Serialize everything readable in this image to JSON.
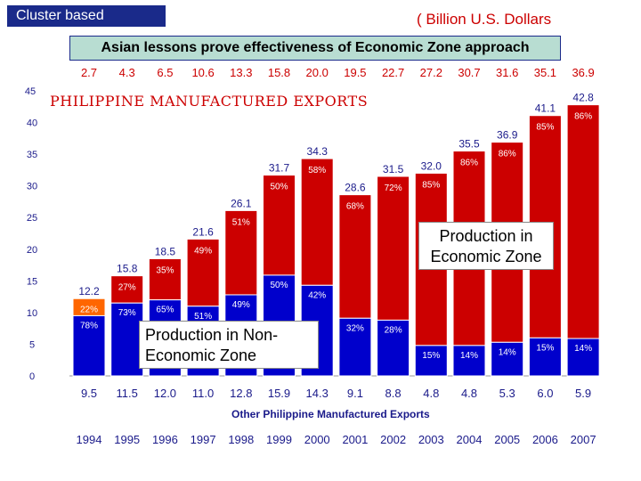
{
  "header": {
    "tag": "Cluster based",
    "unit": "( Billion U.S. Dollars",
    "headline": "Asian lessons prove effectiveness of Economic Zone approach"
  },
  "chart_data": {
    "type": "bar",
    "title": "PHILIPPINE MANUFACTURED EXPORTS",
    "categories": [
      "1994",
      "1995",
      "1996",
      "1997",
      "1998",
      "1999",
      "2000",
      "2001",
      "2002",
      "2003",
      "2004",
      "2005",
      "2006",
      "2007"
    ],
    "totals": [
      15.8,
      18.5,
      21.6,
      26.1,
      31.7,
      34.3,
      28.6,
      31.5,
      32.0,
      35.5,
      36.9,
      41.1,
      42.8
    ],
    "total_labels": [
      "12.2",
      "15.8",
      "18.5",
      "21.6",
      "26.1",
      "31.7",
      "34.3",
      "28.6",
      "31.5",
      "32.0",
      "35.5",
      "36.9",
      "41.1",
      "42.8"
    ],
    "totals_all": [
      12.2,
      15.8,
      18.5,
      21.6,
      26.1,
      31.7,
      34.3,
      28.6,
      31.5,
      32.0,
      35.5,
      36.9,
      41.1,
      42.8
    ],
    "series": [
      {
        "name": "Production in Economic Zone",
        "color": "#cc0000",
        "values": [
          2.7,
          4.3,
          6.5,
          10.6,
          13.3,
          15.8,
          20.0,
          19.5,
          22.7,
          27.2,
          30.7,
          31.6,
          35.1,
          36.9
        ],
        "labels": [
          "2.7",
          "4.3",
          "6.5",
          "10.6",
          "13.3",
          "15.8",
          "20.0",
          "19.5",
          "22.7",
          "27.2",
          "30.7",
          "31.6",
          "35.1",
          "36.9"
        ],
        "pct": [
          "22%",
          "27%",
          "35%",
          "49%",
          "51%",
          "50%",
          "58%",
          "68%",
          "72%",
          "85%",
          "86%",
          "86%",
          "85%",
          "86%"
        ]
      },
      {
        "name": "Production in Non-Economic Zone",
        "color": "#0000cc",
        "values": [
          9.5,
          11.5,
          12.0,
          11.0,
          12.8,
          15.9,
          14.3,
          9.1,
          8.8,
          4.8,
          4.8,
          5.3,
          6.0,
          5.9
        ],
        "labels": [
          "9.5",
          "11.5",
          "12.0",
          "11.0",
          "12.8",
          "15.9",
          "14.3",
          "9.1",
          "8.8",
          "4.8",
          "4.8",
          "5.3",
          "6.0",
          "5.9"
        ],
        "pct": [
          "78%",
          "73%",
          "65%",
          "51%",
          "49%",
          "50%",
          "42%",
          "32%",
          "28%",
          "15%",
          "14%",
          "14%",
          "15%",
          "14%"
        ]
      }
    ],
    "first_bar_ez_color": "#ff6600",
    "y_ticks": [
      "0",
      "5",
      "10",
      "15",
      "20",
      "25",
      "30",
      "35",
      "40",
      "45"
    ],
    "ylim": [
      0,
      45
    ],
    "x_axis_note": "Other Philippine Manufactured Exports",
    "grid": false
  },
  "callouts": {
    "ez": "Production in Economic Zone",
    "ez_line1": "Production in",
    "ez_line2": "Economic Zone",
    "nez_line1": "Production in Non-",
    "nez_line2": "Economic Zone"
  }
}
